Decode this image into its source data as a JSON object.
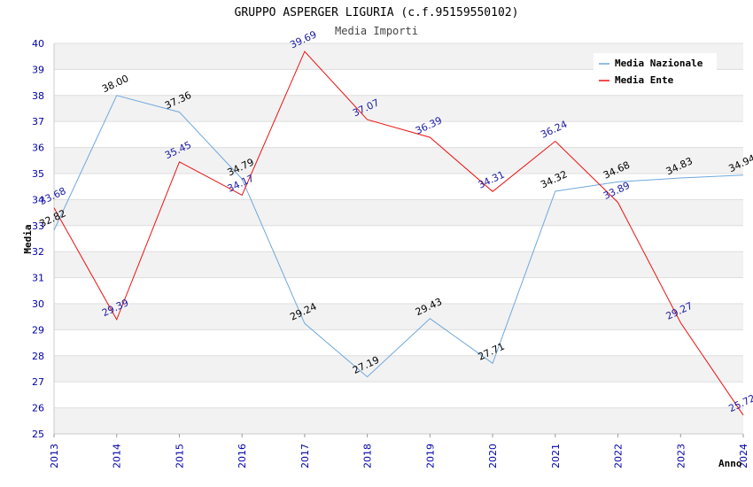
{
  "chart_data": {
    "type": "line",
    "title": "GRUPPO ASPERGER LIGURIA (c.f.95159550102)",
    "subtitle": "Media Importi",
    "xlabel": "Anno",
    "ylabel": "Media",
    "ylim": [
      25,
      40
    ],
    "yticks": [
      25,
      26,
      27,
      28,
      29,
      30,
      31,
      32,
      33,
      34,
      35,
      36,
      37,
      38,
      39,
      40
    ],
    "categories": [
      "2013",
      "2014",
      "2015",
      "2016",
      "2017",
      "2018",
      "2019",
      "2020",
      "2021",
      "2022",
      "2023",
      "2024"
    ],
    "grid": true,
    "legend_position": "top-right",
    "series": [
      {
        "name": "Media Nazionale",
        "color": "#6fa8dc",
        "values": [
          32.82,
          38.0,
          37.36,
          34.79,
          29.24,
          27.19,
          29.43,
          27.71,
          34.32,
          34.68,
          34.83,
          34.94
        ],
        "labels": [
          "32.82",
          "38.00",
          "37.36",
          "34.79",
          "29.24",
          "27.19",
          "29.43",
          "27.71",
          "34.32",
          "34.68",
          "34.83",
          "34.94"
        ]
      },
      {
        "name": "Media Ente",
        "color": "#ee1111",
        "values": [
          33.68,
          29.39,
          35.45,
          34.17,
          39.69,
          37.07,
          36.39,
          34.31,
          36.24,
          33.89,
          29.27,
          25.72
        ],
        "labels": [
          "33.68",
          "29.39",
          "35.45",
          "34.17",
          "39.69",
          "37.07",
          "36.39",
          "34.31",
          "36.24",
          "33.89",
          "29.27",
          "25.72"
        ]
      }
    ]
  }
}
